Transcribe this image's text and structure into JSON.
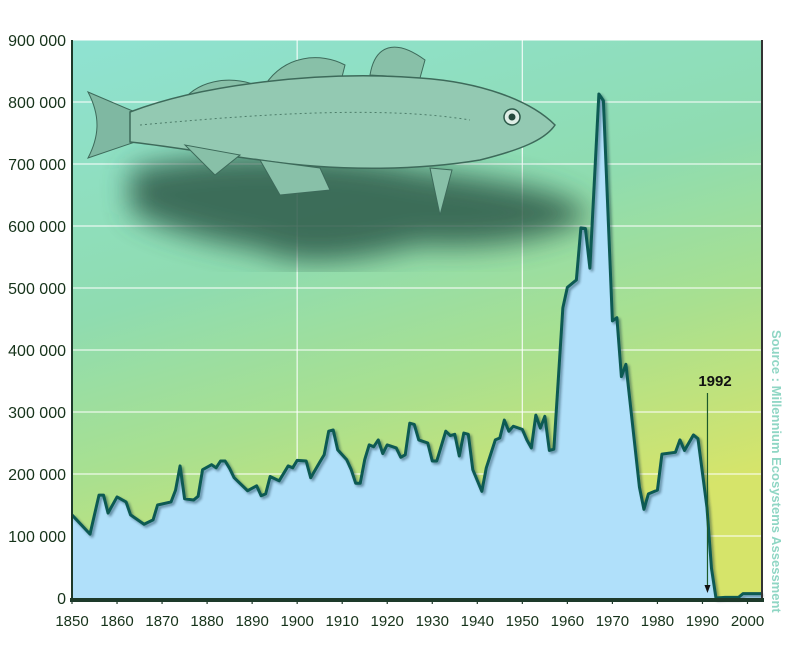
{
  "chart_data": {
    "type": "area",
    "title": "",
    "xlabel": "",
    "ylabel": "",
    "xlim": [
      1850,
      2003
    ],
    "ylim": [
      0,
      900000
    ],
    "grid": true,
    "x_ticks": [
      "1850",
      "1860",
      "1870",
      "1880",
      "1890",
      "1900",
      "1910",
      "1920",
      "1930",
      "1940",
      "1950",
      "1960",
      "1970",
      "1980",
      "1990",
      "2000"
    ],
    "y_ticks": [
      "0",
      "100 000",
      "200 000",
      "300 000",
      "400 000",
      "500 000",
      "600 000",
      "700 000",
      "800 000",
      "900 000"
    ],
    "annotation": {
      "label": "1992",
      "x": 1992
    },
    "source": "Source : Millennium Ecosystems Assessment",
    "colors": {
      "fill": "#b0e0fa",
      "line": "#0b5a52",
      "bg_top": "#8fe2d2",
      "bg_bottom": "#d6e46a"
    },
    "x": [
      1850,
      1854,
      1856,
      1857,
      1858,
      1860,
      1862,
      1863,
      1866,
      1868,
      1869,
      1872,
      1873,
      1874,
      1875,
      1877,
      1878,
      1879,
      1881,
      1882,
      1883,
      1884,
      1885,
      1886,
      1889,
      1891,
      1892,
      1893,
      1894,
      1896,
      1898,
      1899,
      1900,
      1902,
      1903,
      1905,
      1906,
      1907,
      1908,
      1909,
      1911,
      1912,
      1913,
      1914,
      1915,
      1916,
      1917,
      1918,
      1919,
      1920,
      1922,
      1923,
      1924,
      1925,
      1926,
      1927,
      1929,
      1930,
      1931,
      1933,
      1934,
      1935,
      1936,
      1937,
      1938,
      1939,
      1941,
      1942,
      1944,
      1945,
      1946,
      1947,
      1948,
      1950,
      1951,
      1952,
      1953,
      1954,
      1955,
      1956,
      1957,
      1959,
      1960,
      1962,
      1963,
      1964,
      1965,
      1967,
      1968,
      1970,
      1971,
      1972,
      1973,
      1976,
      1977,
      1978,
      1980,
      1981,
      1984,
      1985,
      1986,
      1988,
      1989,
      1991,
      1992,
      1993,
      1995,
      1998,
      1999,
      2003
    ],
    "values": [
      134000,
      103000,
      166000,
      166000,
      137000,
      163000,
      155000,
      134000,
      119000,
      126000,
      150000,
      155000,
      174000,
      213000,
      160000,
      158000,
      164000,
      207000,
      215000,
      210000,
      221000,
      221000,
      209000,
      194000,
      173000,
      181000,
      165000,
      168000,
      196000,
      189000,
      213000,
      210000,
      222000,
      221000,
      194000,
      219000,
      231000,
      269000,
      271000,
      239000,
      223000,
      207000,
      185000,
      185000,
      223000,
      247000,
      244000,
      255000,
      233000,
      247000,
      242000,
      227000,
      231000,
      282000,
      280000,
      255000,
      250000,
      221000,
      221000,
      269000,
      262000,
      264000,
      229000,
      266000,
      264000,
      207000,
      172000,
      210000,
      255000,
      258000,
      287000,
      269000,
      277000,
      272000,
      255000,
      242000,
      295000,
      274000,
      293000,
      238000,
      240000,
      468000,
      501000,
      513000,
      597000,
      596000,
      532000,
      813000,
      802000,
      447000,
      452000,
      357000,
      377000,
      179000,
      143000,
      168000,
      174000,
      232000,
      235000,
      255000,
      238000,
      263000,
      257000,
      146000,
      48000,
      0,
      1000,
      1000,
      7000,
      7000
    ]
  }
}
